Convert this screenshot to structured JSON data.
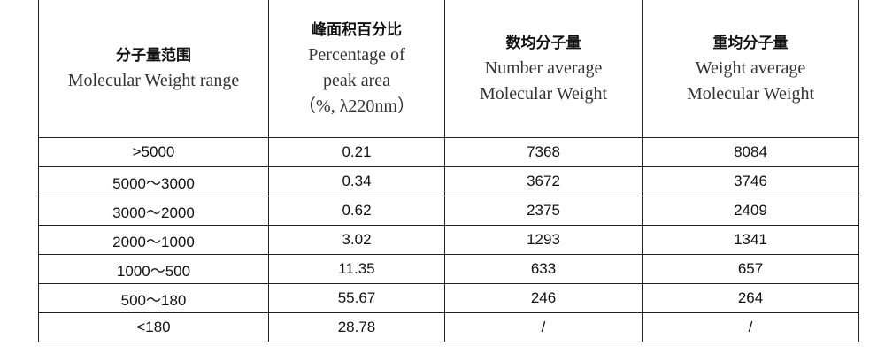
{
  "table": {
    "header": [
      {
        "zh": "分子量范围",
        "en": [
          "Molecular Weight range"
        ]
      },
      {
        "zh": "峰面积百分比",
        "en": [
          "Percentage of",
          "peak area",
          "（%,  λ220nm）"
        ]
      },
      {
        "zh": "数均分子量",
        "en": [
          "Number average",
          "Molecular Weight"
        ]
      },
      {
        "zh": "重均分子量",
        "en": [
          "Weight average",
          "Molecular Weight"
        ]
      }
    ],
    "rows": [
      [
        ">5000",
        "0.21",
        "7368",
        "8084"
      ],
      [
        "5000～3000",
        "0.34",
        "3672",
        "3746"
      ],
      [
        "3000～2000",
        "0.62",
        "2375",
        "2409"
      ],
      [
        "2000～1000",
        "3.02",
        "1293",
        "1341"
      ],
      [
        "1000～500",
        "11.35",
        "633",
        "657"
      ],
      [
        "500～180",
        "55.67",
        "246",
        "264"
      ],
      [
        "<180",
        "28.78",
        "/",
        "/"
      ]
    ]
  }
}
